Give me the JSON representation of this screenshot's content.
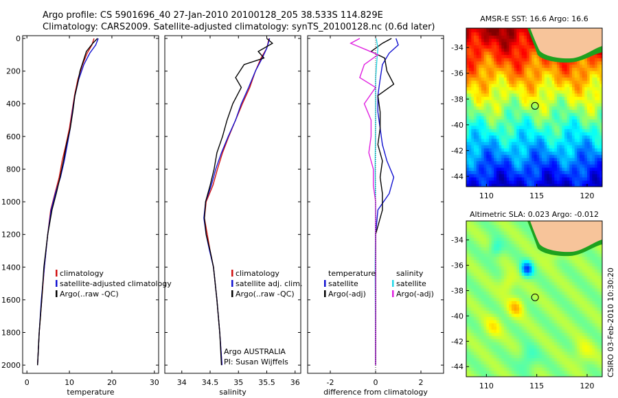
{
  "header": {
    "line1": "Argo profile: CS 5901696_40 27-Jan-2010 20100128_205 38.533S 114.829E",
    "line2": "Climatology: CARS2009. Satellite-adjusted climatology: synTS_20100128.nc (0.6d later)"
  },
  "side_label": "CSIRO 03-Feb-2010 10:30:20",
  "chart_data": [
    {
      "type": "line",
      "panel": "temperature",
      "xlabel": "temperature",
      "xlim": [
        -1,
        31
      ],
      "ylim": [
        0,
        2050
      ],
      "y_reversed": true,
      "xticks": [
        0,
        10,
        20,
        30
      ],
      "yticks": [
        0,
        200,
        400,
        600,
        800,
        1000,
        1200,
        1400,
        1600,
        1800,
        2000
      ],
      "legend": [
        "climatology",
        "satellite-adjusted climatology",
        "Argo(..raw -QC)"
      ],
      "series": [
        {
          "name": "climatology",
          "color": "#d01010",
          "points": [
            [
              15.8,
              0
            ],
            [
              15.3,
              40
            ],
            [
              14.2,
              90
            ],
            [
              13.1,
              160
            ],
            [
              12.0,
              250
            ],
            [
              11.2,
              350
            ],
            [
              10.6,
              450
            ],
            [
              10.0,
              550
            ],
            [
              9.2,
              650
            ],
            [
              8.3,
              750
            ],
            [
              7.6,
              850
            ],
            [
              6.6,
              950
            ],
            [
              5.6,
              1050
            ],
            [
              4.9,
              1200
            ],
            [
              4.1,
              1400
            ],
            [
              3.5,
              1600
            ],
            [
              2.9,
              1800
            ],
            [
              2.5,
              2000
            ]
          ]
        },
        {
          "name": "satellite-adjusted climatology",
          "color": "#1010d0",
          "points": [
            [
              16.8,
              0
            ],
            [
              16.2,
              40
            ],
            [
              14.8,
              90
            ],
            [
              13.4,
              160
            ],
            [
              12.2,
              250
            ],
            [
              11.3,
              350
            ],
            [
              10.7,
              450
            ],
            [
              10.2,
              550
            ],
            [
              9.5,
              650
            ],
            [
              8.8,
              750
            ],
            [
              7.9,
              850
            ],
            [
              6.7,
              950
            ],
            [
              5.7,
              1050
            ],
            [
              4.9,
              1200
            ],
            [
              4.1,
              1400
            ],
            [
              3.4,
              1600
            ],
            [
              2.9,
              1800
            ],
            [
              2.5,
              2000
            ]
          ]
        },
        {
          "name": "Argo(..raw -QC)",
          "color": "#000000",
          "points": [
            [
              16.6,
              0
            ],
            [
              15.5,
              30
            ],
            [
              14.0,
              80
            ],
            [
              13.5,
              120
            ],
            [
              12.5,
              200
            ],
            [
              11.9,
              280
            ],
            [
              11.3,
              350
            ],
            [
              10.8,
              450
            ],
            [
              10.2,
              550
            ],
            [
              9.3,
              650
            ],
            [
              8.6,
              750
            ],
            [
              7.8,
              850
            ],
            [
              6.9,
              950
            ],
            [
              5.9,
              1050
            ],
            [
              4.9,
              1200
            ],
            [
              4.0,
              1400
            ],
            [
              3.5,
              1600
            ],
            [
              2.9,
              1800
            ],
            [
              2.5,
              2000
            ]
          ]
        }
      ]
    },
    {
      "type": "line",
      "panel": "salinity",
      "xlabel": "salinity",
      "xlim": [
        33.7,
        36.1
      ],
      "ylim": [
        0,
        2050
      ],
      "y_reversed": true,
      "xticks": [
        34,
        34.5,
        35,
        35.5,
        36
      ],
      "legend": [
        "climatology",
        "satellite adj. clim.",
        "Argo(..raw -QC)"
      ],
      "annotation": [
        "Argo AUSTRALIA",
        "PI: Susan Wijffels"
      ],
      "series": [
        {
          "name": "climatology",
          "color": "#d01010",
          "points": [
            [
              35.54,
              0
            ],
            [
              35.5,
              60
            ],
            [
              35.4,
              120
            ],
            [
              35.3,
              200
            ],
            [
              35.2,
              300
            ],
            [
              35.07,
              400
            ],
            [
              34.95,
              500
            ],
            [
              34.83,
              600
            ],
            [
              34.72,
              700
            ],
            [
              34.63,
              800
            ],
            [
              34.55,
              900
            ],
            [
              34.43,
              1000
            ],
            [
              34.4,
              1100
            ],
            [
              34.45,
              1200
            ],
            [
              34.5,
              1300
            ],
            [
              34.56,
              1400
            ],
            [
              34.62,
              1600
            ],
            [
              34.67,
              1800
            ],
            [
              34.71,
              2000
            ]
          ]
        },
        {
          "name": "satellite adj. clim.",
          "color": "#1010d0",
          "points": [
            [
              35.55,
              0
            ],
            [
              35.5,
              60
            ],
            [
              35.42,
              120
            ],
            [
              35.3,
              200
            ],
            [
              35.18,
              300
            ],
            [
              35.05,
              400
            ],
            [
              34.95,
              500
            ],
            [
              34.82,
              600
            ],
            [
              34.7,
              700
            ],
            [
              34.6,
              800
            ],
            [
              34.52,
              900
            ],
            [
              34.42,
              1000
            ],
            [
              34.39,
              1100
            ],
            [
              34.43,
              1200
            ],
            [
              34.49,
              1300
            ],
            [
              34.56,
              1400
            ],
            [
              34.62,
              1600
            ],
            [
              34.67,
              1800
            ],
            [
              34.71,
              2000
            ]
          ]
        },
        {
          "name": "Argo(..raw -QC)",
          "color": "#000000",
          "points": [
            [
              35.5,
              0
            ],
            [
              35.6,
              30
            ],
            [
              35.35,
              80
            ],
            [
              35.45,
              120
            ],
            [
              35.1,
              160
            ],
            [
              34.95,
              240
            ],
            [
              35.05,
              300
            ],
            [
              34.9,
              400
            ],
            [
              34.8,
              500
            ],
            [
              34.72,
              600
            ],
            [
              34.62,
              700
            ],
            [
              34.57,
              800
            ],
            [
              34.5,
              900
            ],
            [
              34.42,
              1000
            ],
            [
              34.4,
              1100
            ],
            [
              34.43,
              1200
            ],
            [
              34.5,
              1300
            ],
            [
              34.56,
              1400
            ],
            [
              34.62,
              1600
            ],
            [
              34.67,
              1800
            ],
            [
              34.7,
              2000
            ]
          ]
        }
      ]
    },
    {
      "type": "line",
      "panel": "difference",
      "xlabel": "difference from climatology",
      "xlim": [
        -3,
        3
      ],
      "ylim": [
        0,
        2050
      ],
      "y_reversed": true,
      "xticks": [
        -2,
        0,
        2
      ],
      "legend_left": [
        "temperature",
        "satellite",
        "Argo(-adj)"
      ],
      "legend_right": [
        "salinity",
        "satellite",
        "Argo(-adj)"
      ],
      "series": [
        {
          "name": "temperature satellite",
          "color": "#1010d0",
          "points": [
            [
              0.9,
              0
            ],
            [
              1.0,
              40
            ],
            [
              0.6,
              90
            ],
            [
              0.3,
              160
            ],
            [
              0.2,
              250
            ],
            [
              0.1,
              350
            ],
            [
              0.1,
              450
            ],
            [
              0.2,
              550
            ],
            [
              0.3,
              650
            ],
            [
              0.5,
              750
            ],
            [
              0.8,
              850
            ],
            [
              0.6,
              950
            ],
            [
              0.1,
              1050
            ],
            [
              0.0,
              1200
            ],
            [
              0.0,
              1500
            ],
            [
              0.0,
              2000
            ]
          ]
        },
        {
          "name": "temperature Argo(-adj)",
          "color": "#000000",
          "points": [
            [
              0.7,
              0
            ],
            [
              0.3,
              30
            ],
            [
              -0.2,
              80
            ],
            [
              0.4,
              120
            ],
            [
              0.5,
              200
            ],
            [
              0.8,
              280
            ],
            [
              0.1,
              350
            ],
            [
              0.2,
              450
            ],
            [
              0.2,
              550
            ],
            [
              0.1,
              650
            ],
            [
              0.3,
              750
            ],
            [
              0.2,
              850
            ],
            [
              0.3,
              950
            ],
            [
              0.3,
              1050
            ],
            [
              0.0,
              1200
            ],
            [
              0.0,
              1500
            ],
            [
              0.0,
              2000
            ]
          ]
        },
        {
          "name": "salinity satellite",
          "color": "#20d8e8",
          "points": [
            [
              0.03,
              0
            ],
            [
              0.1,
              60
            ],
            [
              0.05,
              150
            ],
            [
              0.0,
              250
            ],
            [
              0.0,
              500
            ],
            [
              -0.02,
              800
            ],
            [
              0.0,
              1100
            ],
            [
              -0.02,
              1400
            ],
            [
              0.0,
              2000
            ]
          ]
        },
        {
          "name": "salinity Argo(-adj)",
          "color": "#e020e0",
          "points": [
            [
              -0.7,
              0
            ],
            [
              -1.1,
              30
            ],
            [
              -0.4,
              70
            ],
            [
              0.1,
              100
            ],
            [
              -0.5,
              160
            ],
            [
              -0.7,
              240
            ],
            [
              0.0,
              300
            ],
            [
              -0.5,
              400
            ],
            [
              -0.2,
              500
            ],
            [
              -0.2,
              600
            ],
            [
              -0.3,
              700
            ],
            [
              -0.1,
              800
            ],
            [
              -0.1,
              900
            ],
            [
              0.0,
              1000
            ],
            [
              0.0,
              1100
            ],
            [
              0.0,
              1200
            ],
            [
              0.0,
              2000
            ]
          ]
        }
      ]
    },
    {
      "type": "heatmap",
      "panel": "AMSR-E SST",
      "title": "AMSR-E SST: 16.6 Argo: 16.6",
      "xlim": [
        108,
        121.5
      ],
      "ylim": [
        -44.8,
        -32.5
      ],
      "xticks": [
        110,
        115,
        120
      ],
      "yticks": [
        -34,
        -36,
        -38,
        -40,
        -42,
        -44
      ],
      "argo_location": [
        114.829,
        -38.533
      ]
    },
    {
      "type": "heatmap",
      "panel": "Altimetric SLA",
      "title": "Altimetric SLA: 0.023 Argo: -0.012",
      "xlim": [
        108,
        121.5
      ],
      "ylim": [
        -44.8,
        -32.5
      ],
      "xticks": [
        110,
        115,
        120
      ],
      "yticks": [
        -34,
        -36,
        -38,
        -40,
        -42,
        -44
      ],
      "argo_location": [
        114.829,
        -38.533
      ]
    }
  ]
}
